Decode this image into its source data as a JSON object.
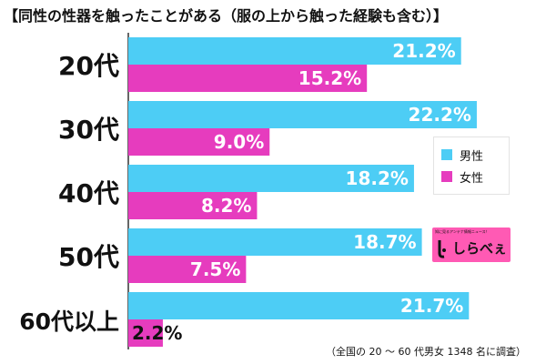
{
  "title": "【同性の性器を触ったことがある（服の上から触った経験も含む）】",
  "note": "（全国の 20 ～ 60 代男女 1348 名に調査）",
  "legend": {
    "male": "男性",
    "female": "女性"
  },
  "logo": {
    "tagline": "知に見るアンテナ情報ニュース！",
    "name": "しらべぇ"
  },
  "colors": {
    "male": "#4dcdf5",
    "female": "#e63cbe",
    "logo_bg": "#ff5ab4"
  },
  "chart_data": {
    "type": "bar",
    "orientation": "horizontal",
    "title": "【同性の性器を触ったことがある（服の上から触った経験も含む）】",
    "categories": [
      "20代",
      "30代",
      "40代",
      "50代",
      "60代以上"
    ],
    "series": [
      {
        "name": "男性",
        "values": [
          21.2,
          22.2,
          18.2,
          18.7,
          21.7
        ],
        "labels": [
          "21.2%",
          "22.2%",
          "18.2%",
          "18.7%",
          "21.7%"
        ]
      },
      {
        "name": "女性",
        "values": [
          15.2,
          9.0,
          8.2,
          7.5,
          2.2
        ],
        "labels": [
          "15.2%",
          "9.0%",
          "8.2%",
          "7.5%",
          "2.2%"
        ]
      }
    ],
    "xlim": [
      0,
      26
    ],
    "grid": false,
    "legend_position": "right"
  }
}
